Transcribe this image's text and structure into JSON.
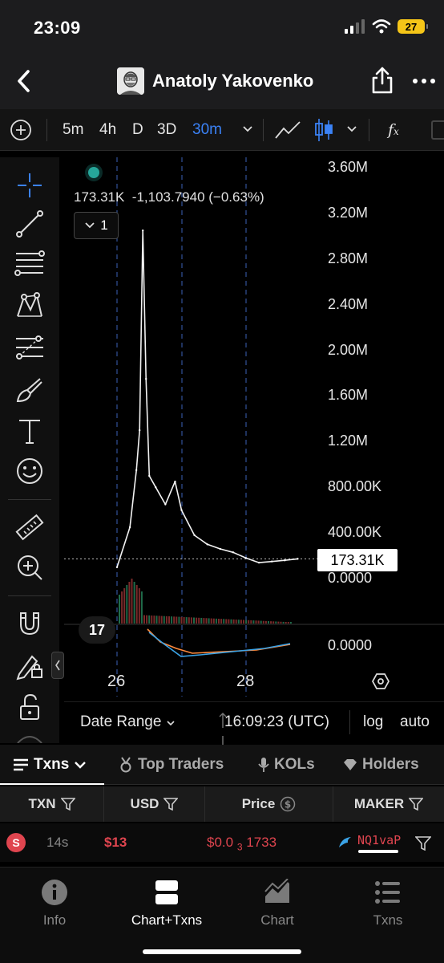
{
  "status_bar": {
    "time": "23:09",
    "battery": "27"
  },
  "nav": {
    "title": "Anatoly Yakovenko"
  },
  "toolbar": {
    "intervals": [
      "5m",
      "4h",
      "D",
      "3D",
      "30m"
    ],
    "active_interval": "30m"
  },
  "chart": {
    "legend": {
      "price": "173.31K",
      "change": "-1,103.7940 (−0.63%)",
      "indicator_count": "1"
    },
    "price_tag": "173.31K",
    "volume_label": "0.0000"
  },
  "chart_data": {
    "type": "line",
    "y_ticks": [
      "3.60M",
      "3.20M",
      "2.80M",
      "2.40M",
      "2.00M",
      "1.60M",
      "1.20M",
      "800.00K",
      "400.00K",
      "0.0000"
    ],
    "x_ticks": [
      "26",
      "28"
    ],
    "ylim": [
      0,
      3600000
    ],
    "current_value": 173310,
    "series": [
      {
        "x": [
          0.0,
          0.2,
          0.3,
          0.35,
          0.4,
          0.45,
          0.5,
          0.6,
          0.75,
          0.9,
          1.0,
          1.2,
          1.4,
          1.6,
          1.8,
          2.0,
          2.2,
          2.4,
          2.6,
          2.8
        ],
        "values": [
          100000,
          450000,
          950000,
          1300000,
          3050000,
          1750000,
          900000,
          800000,
          650000,
          850000,
          600000,
          380000,
          300000,
          260000,
          230000,
          180000,
          140000,
          150000,
          160000,
          173310
        ]
      }
    ]
  },
  "chart_footer": {
    "date_range": "Date Range",
    "time": "16:09:23 (UTC)",
    "log": "log",
    "auto": "auto"
  },
  "tabs": [
    "Txns",
    "Top Traders",
    "KOLs",
    "Holders"
  ],
  "table": {
    "headers": [
      "TXN",
      "USD",
      "Price",
      "MAKER"
    ],
    "rows": [
      {
        "side": "S",
        "age": "14s",
        "usd": "$13",
        "price_a": "$0.0",
        "price_sub": "3",
        "price_b": "1733",
        "maker": "NQ1vaP"
      }
    ]
  },
  "bottom_nav": [
    "Info",
    "Chart+Txns",
    "Chart",
    "Txns"
  ],
  "colors": {
    "accent": "#3b82f6",
    "sell": "#e0454f",
    "up": "#26a69a"
  }
}
